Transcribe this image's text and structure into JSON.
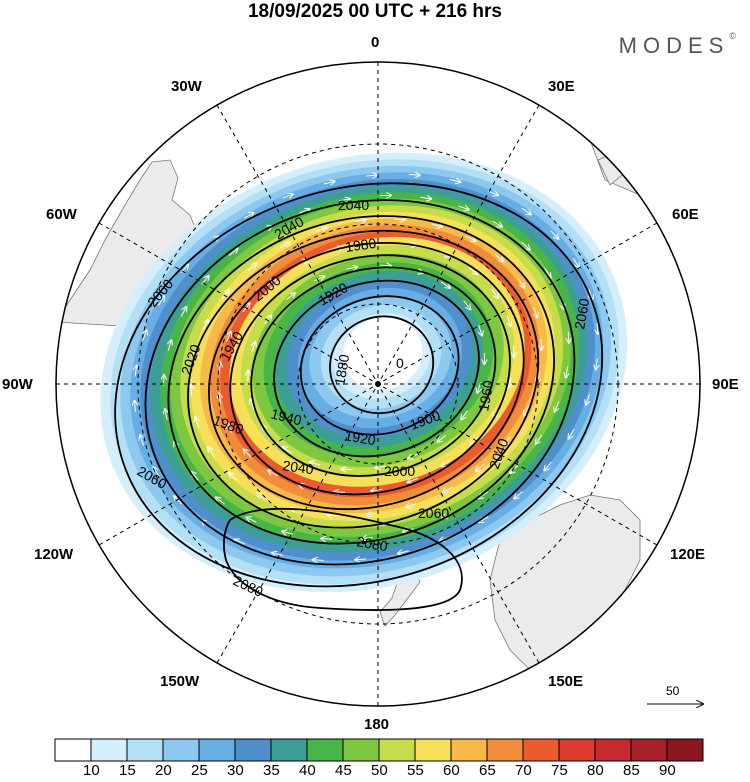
{
  "title": "18/09/2025  00 UTC  + 216 hrs",
  "logo": "MODES",
  "logo_mark": "©",
  "meridian_labels": {
    "n0": "0",
    "w30": "30W",
    "e30": "30E",
    "w60": "60W",
    "e60": "60E",
    "w90": "90W",
    "e90": "90E",
    "w120": "120W",
    "e120": "120E",
    "w150": "150W",
    "e150": "150E",
    "s180": "180"
  },
  "contour_labels": [
    "1880",
    "1900",
    "1920",
    "1940",
    "1960",
    "1980",
    "2000",
    "2020",
    "2040",
    "2060",
    "2080",
    "0"
  ],
  "reference_vector": "50",
  "colorbar": {
    "labels": [
      "10",
      "15",
      "20",
      "25",
      "30",
      "35",
      "40",
      "45",
      "50",
      "55",
      "60",
      "65",
      "70",
      "75",
      "80",
      "85",
      "90"
    ],
    "colors": [
      "#ffffff",
      "#d4eefb",
      "#b4e0f6",
      "#8cc8ef",
      "#66aee3",
      "#4f8fcc",
      "#3d9e96",
      "#48b548",
      "#7ec741",
      "#c6dc4b",
      "#f6e05a",
      "#f7b947",
      "#f08c3a",
      "#ea5b2e",
      "#dc3a2e",
      "#c52a2e",
      "#a81f2a",
      "#8c1622"
    ]
  },
  "speed_field": [
    {
      "speed": 12,
      "color": "#d4eefb"
    },
    {
      "speed": 18,
      "color": "#b4e0f6"
    },
    {
      "speed": 23,
      "color": "#8cc8ef"
    },
    {
      "speed": 28,
      "color": "#66aee3"
    },
    {
      "speed": 33,
      "color": "#4f8fcc"
    },
    {
      "speed": 38,
      "color": "#3d9e96"
    },
    {
      "speed": 43,
      "color": "#48b548"
    },
    {
      "speed": 48,
      "color": "#7ec741"
    },
    {
      "speed": 53,
      "color": "#c6dc4b"
    },
    {
      "speed": 58,
      "color": "#f6e05a"
    },
    {
      "speed": 63,
      "color": "#f7b947"
    },
    {
      "speed": 68,
      "color": "#f08c3a"
    },
    {
      "speed": 73,
      "color": "#ea5b2e"
    }
  ],
  "colors": {
    "land": "#ebebeb",
    "coast": "#777777",
    "grid": "#000000",
    "contour": "#000000",
    "vector": "#ffffff"
  }
}
